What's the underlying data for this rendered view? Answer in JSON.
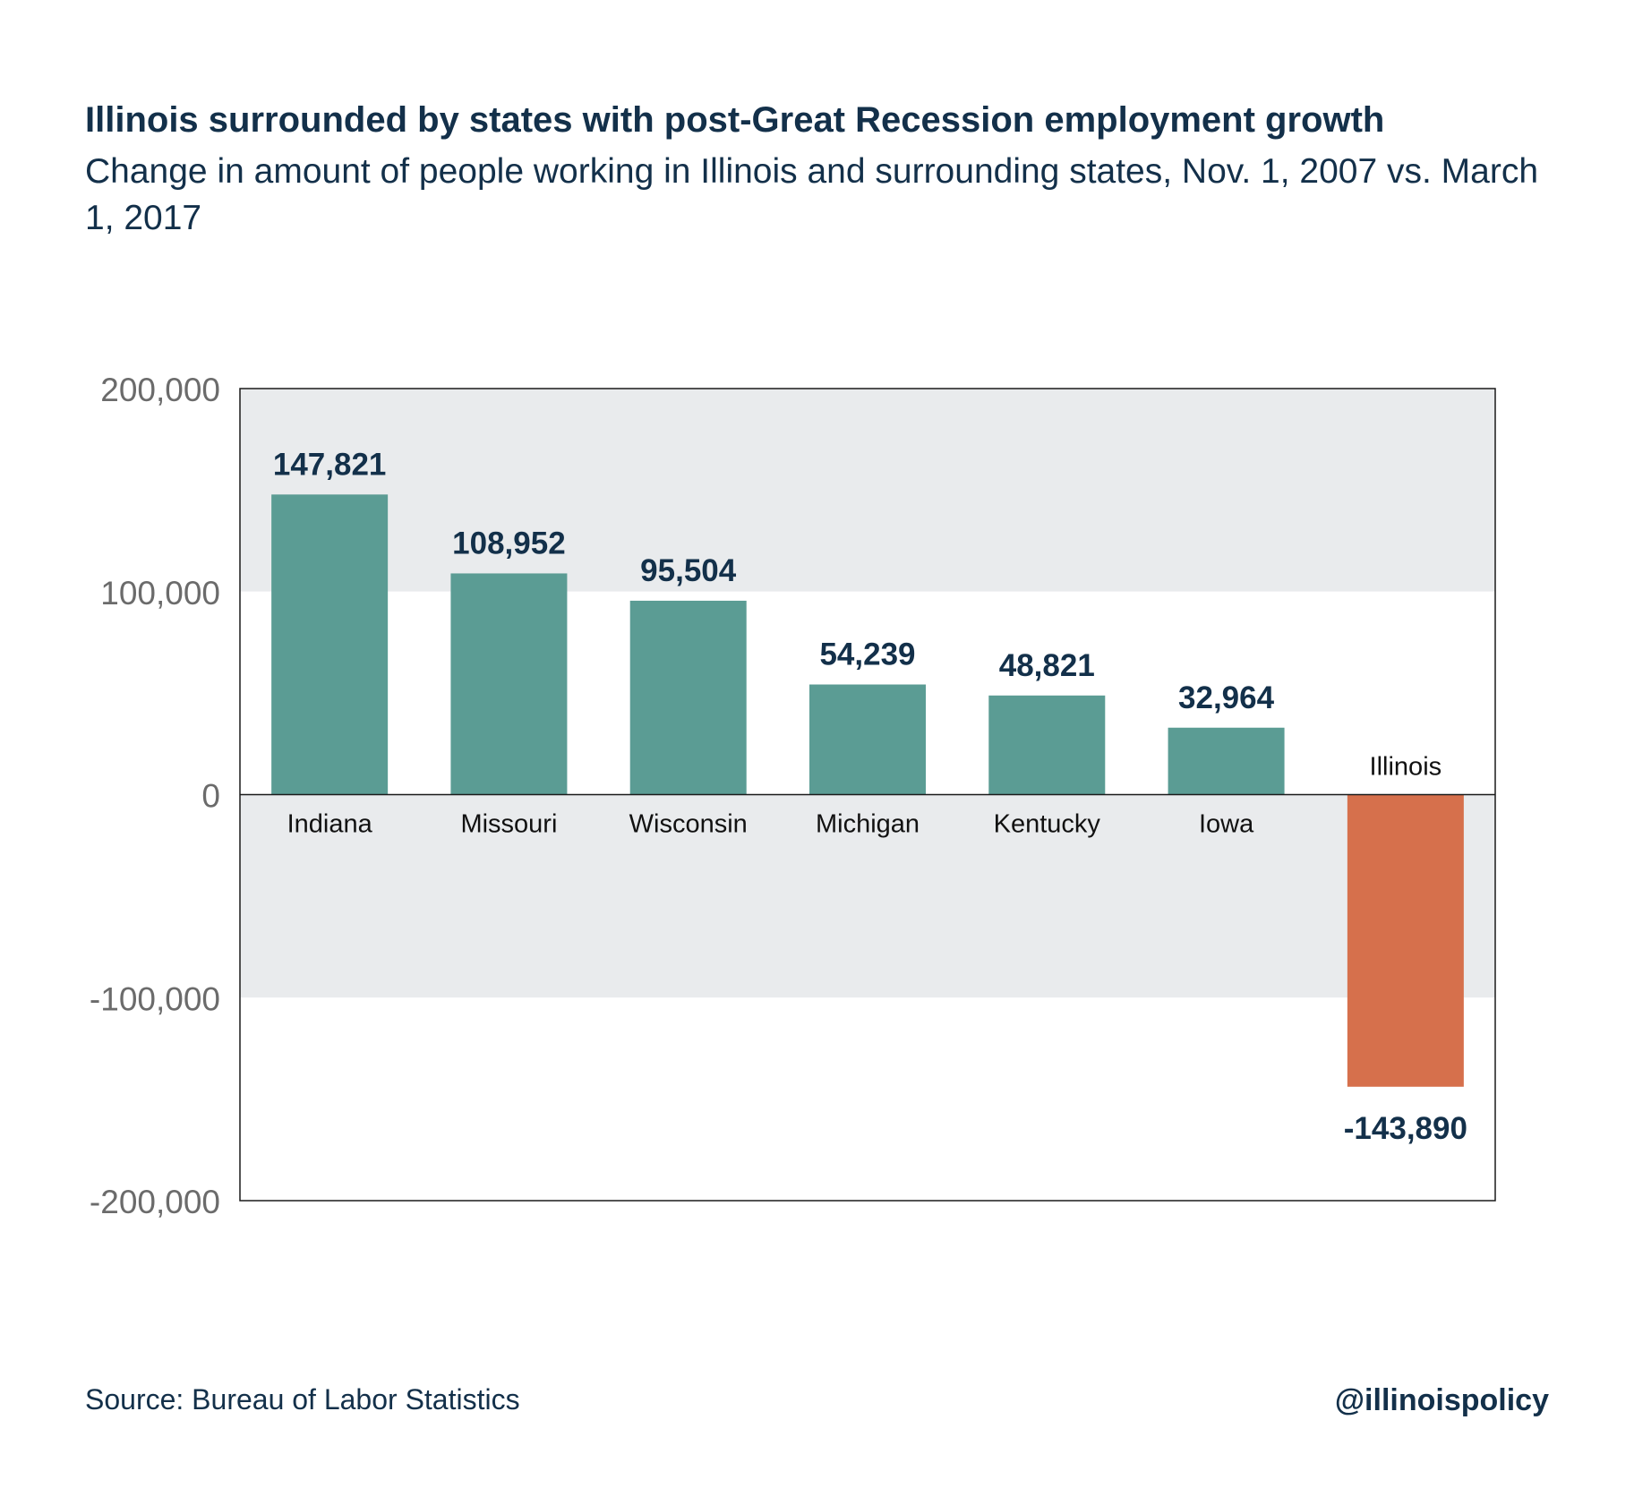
{
  "header": {
    "title": "Illinois surrounded by states with post-Great Recession employment growth",
    "subtitle": "Change in amount of people working in Illinois and surrounding states, Nov. 1, 2007 vs. March 1, 2017"
  },
  "footer": {
    "source": "Source: Bureau of Labor Statistics",
    "handle": "@illinoispolicy"
  },
  "chart_data": {
    "type": "bar",
    "categories": [
      "Indiana",
      "Missouri",
      "Wisconsin",
      "Michigan",
      "Kentucky",
      "Iowa",
      "Illinois"
    ],
    "values": [
      147821,
      108952,
      95504,
      54239,
      48821,
      32964,
      -143890
    ],
    "value_labels": [
      "147,821",
      "108,952",
      "95,504",
      "54,239",
      "48,821",
      "32,964",
      "-143,890"
    ],
    "ylim": [
      -200000,
      200000
    ],
    "yticks": [
      200000,
      100000,
      0,
      -100000,
      -200000
    ],
    "ytick_labels": [
      "200,000",
      "100,000",
      "0",
      "-100,000",
      "-200,000"
    ],
    "grid": "alternating gray bands",
    "colors": {
      "positive": "#5b9c94",
      "negative": "#d6704c",
      "band": "#e9ebed",
      "text": "#13304a",
      "tick": "#6b6b6b"
    }
  }
}
